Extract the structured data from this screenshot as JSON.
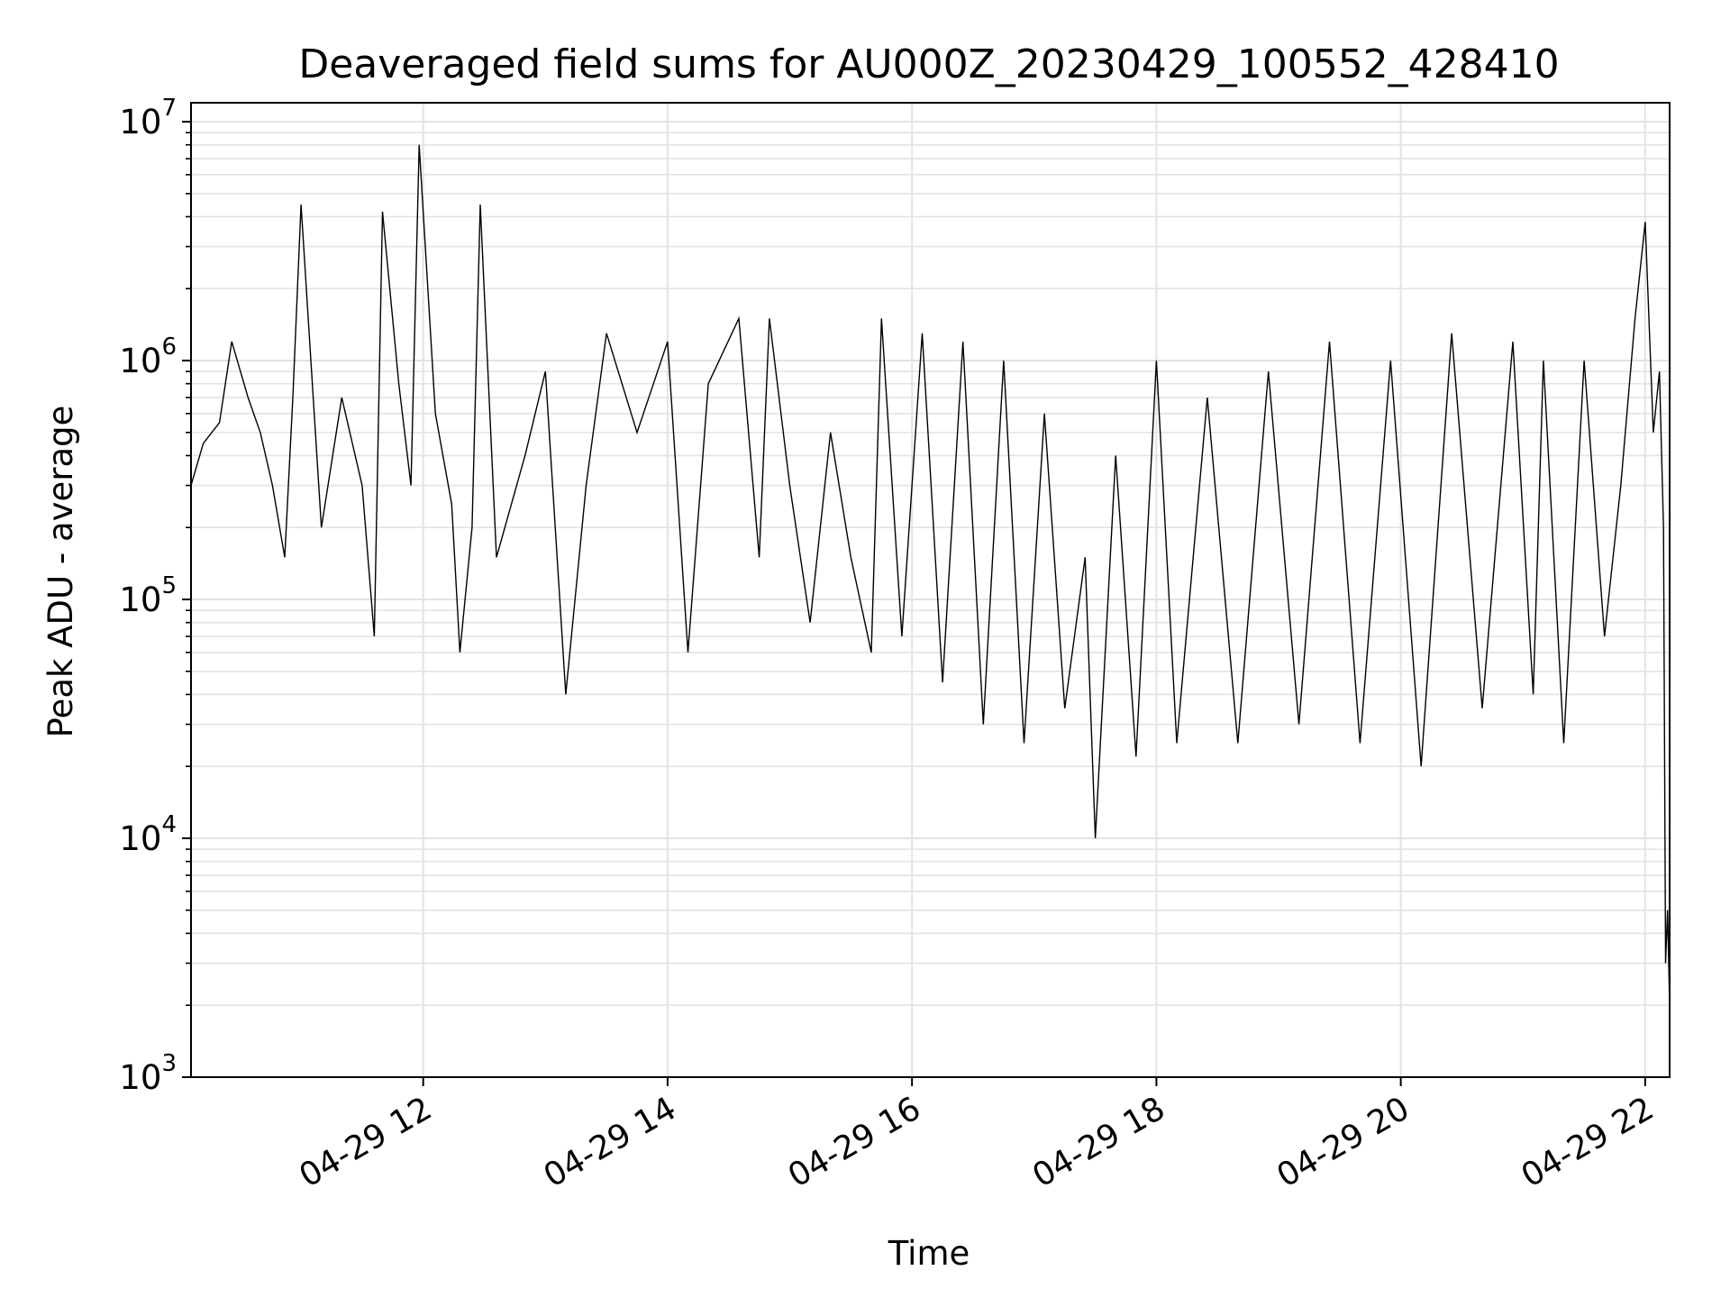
{
  "chart_data": {
    "type": "line",
    "title": "Deaveraged field sums for AU000Z_20230429_100552_428410",
    "xlabel": "Time",
    "ylabel": "Peak ADU - average",
    "x_scale": "time",
    "y_scale": "log",
    "xlim": [
      "2023-04-29 10:06",
      "2023-04-29 22:12"
    ],
    "ylim": [
      1000,
      12000000
    ],
    "x_ticks": [
      {
        "value": "2023-04-29 12:00",
        "label": "04-29 12"
      },
      {
        "value": "2023-04-29 14:00",
        "label": "04-29 14"
      },
      {
        "value": "2023-04-29 16:00",
        "label": "04-29 16"
      },
      {
        "value": "2023-04-29 18:00",
        "label": "04-29 18"
      },
      {
        "value": "2023-04-29 20:00",
        "label": "04-29 20"
      },
      {
        "value": "2023-04-29 22:00",
        "label": "04-29 22"
      }
    ],
    "y_ticks": [
      {
        "value": 1000,
        "base": "10",
        "exp": "3"
      },
      {
        "value": 10000,
        "base": "10",
        "exp": "4"
      },
      {
        "value": 100000,
        "base": "10",
        "exp": "5"
      },
      {
        "value": 1000000,
        "base": "10",
        "exp": "6"
      },
      {
        "value": 10000000,
        "base": "10",
        "exp": "7"
      }
    ],
    "grid": {
      "major": true,
      "minor_y": true,
      "color": "#e3e3e3"
    },
    "legend": "none",
    "series": [
      {
        "color": "#000000",
        "points": [
          [
            "2023-04-29 10:06",
            300000
          ],
          [
            "2023-04-29 10:12",
            450000
          ],
          [
            "2023-04-29 10:20",
            550000
          ],
          [
            "2023-04-29 10:26",
            1200000
          ],
          [
            "2023-04-29 10:34",
            700000
          ],
          [
            "2023-04-29 10:40",
            500000
          ],
          [
            "2023-04-29 10:46",
            300000
          ],
          [
            "2023-04-29 10:52",
            150000
          ],
          [
            "2023-04-29 10:56",
            700000
          ],
          [
            "2023-04-29 11:00",
            4500000
          ],
          [
            "2023-04-29 11:10",
            200000
          ],
          [
            "2023-04-29 11:20",
            700000
          ],
          [
            "2023-04-29 11:30",
            300000
          ],
          [
            "2023-04-29 11:36",
            70000
          ],
          [
            "2023-04-29 11:40",
            4200000
          ],
          [
            "2023-04-29 11:48",
            800000
          ],
          [
            "2023-04-29 11:54",
            300000
          ],
          [
            "2023-04-29 11:58",
            8000000
          ],
          [
            "2023-04-29 12:06",
            600000
          ],
          [
            "2023-04-29 12:14",
            250000
          ],
          [
            "2023-04-29 12:18",
            60000
          ],
          [
            "2023-04-29 12:24",
            200000
          ],
          [
            "2023-04-29 12:28",
            4500000
          ],
          [
            "2023-04-29 12:36",
            150000
          ],
          [
            "2023-04-29 12:50",
            400000
          ],
          [
            "2023-04-29 13:00",
            900000
          ],
          [
            "2023-04-29 13:10",
            40000
          ],
          [
            "2023-04-29 13:20",
            300000
          ],
          [
            "2023-04-29 13:30",
            1300000
          ],
          [
            "2023-04-29 13:45",
            500000
          ],
          [
            "2023-04-29 14:00",
            1200000
          ],
          [
            "2023-04-29 14:10",
            60000
          ],
          [
            "2023-04-29 14:20",
            800000
          ],
          [
            "2023-04-29 14:35",
            1500000
          ],
          [
            "2023-04-29 14:45",
            150000
          ],
          [
            "2023-04-29 14:50",
            1500000
          ],
          [
            "2023-04-29 15:00",
            300000
          ],
          [
            "2023-04-29 15:10",
            80000
          ],
          [
            "2023-04-29 15:20",
            500000
          ],
          [
            "2023-04-29 15:30",
            150000
          ],
          [
            "2023-04-29 15:40",
            60000
          ],
          [
            "2023-04-29 15:45",
            1500000
          ],
          [
            "2023-04-29 15:55",
            70000
          ],
          [
            "2023-04-29 16:05",
            1300000
          ],
          [
            "2023-04-29 16:15",
            45000
          ],
          [
            "2023-04-29 16:25",
            1200000
          ],
          [
            "2023-04-29 16:35",
            30000
          ],
          [
            "2023-04-29 16:45",
            1000000
          ],
          [
            "2023-04-29 16:55",
            25000
          ],
          [
            "2023-04-29 17:05",
            600000
          ],
          [
            "2023-04-29 17:15",
            35000
          ],
          [
            "2023-04-29 17:25",
            150000
          ],
          [
            "2023-04-29 17:30",
            10000
          ],
          [
            "2023-04-29 17:40",
            400000
          ],
          [
            "2023-04-29 17:50",
            22000
          ],
          [
            "2023-04-29 18:00",
            1000000
          ],
          [
            "2023-04-29 18:10",
            25000
          ],
          [
            "2023-04-29 18:25",
            700000
          ],
          [
            "2023-04-29 18:40",
            25000
          ],
          [
            "2023-04-29 18:55",
            900000
          ],
          [
            "2023-04-29 19:10",
            30000
          ],
          [
            "2023-04-29 19:25",
            1200000
          ],
          [
            "2023-04-29 19:40",
            25000
          ],
          [
            "2023-04-29 19:55",
            1000000
          ],
          [
            "2023-04-29 20:10",
            20000
          ],
          [
            "2023-04-29 20:25",
            1300000
          ],
          [
            "2023-04-29 20:40",
            35000
          ],
          [
            "2023-04-29 20:55",
            1200000
          ],
          [
            "2023-04-29 21:05",
            40000
          ],
          [
            "2023-04-29 21:10",
            1000000
          ],
          [
            "2023-04-29 21:20",
            25000
          ],
          [
            "2023-04-29 21:30",
            1000000
          ],
          [
            "2023-04-29 21:40",
            70000
          ],
          [
            "2023-04-29 21:48",
            300000
          ],
          [
            "2023-04-29 21:55",
            1500000
          ],
          [
            "2023-04-29 22:00",
            3800000
          ],
          [
            "2023-04-29 22:04",
            500000
          ],
          [
            "2023-04-29 22:07",
            900000
          ],
          [
            "2023-04-29 22:09",
            200000
          ],
          [
            "2023-04-29 22:10",
            3000
          ],
          [
            "2023-04-29 22:11",
            5000
          ],
          [
            "2023-04-29 22:12",
            2000
          ]
        ]
      }
    ]
  }
}
